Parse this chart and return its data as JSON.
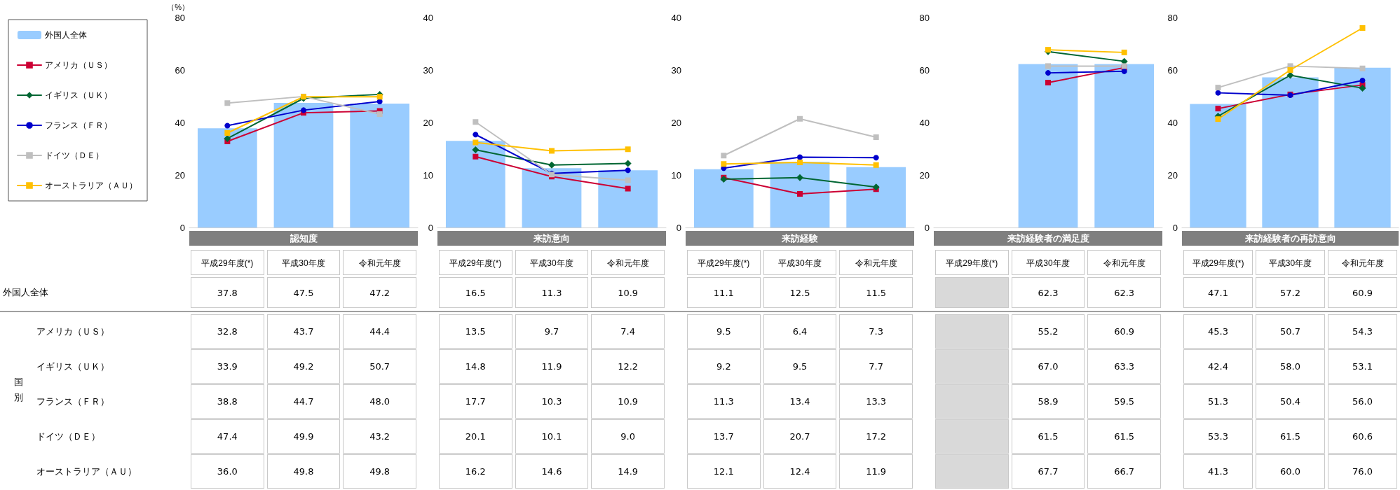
{
  "chart_data": [
    {
      "type": "line",
      "title": "認知度",
      "ylabel": "（%）",
      "categories": [
        "平成29年度(*)",
        "平成30年度",
        "令和元年度"
      ],
      "ylim": [
        0,
        80
      ],
      "yticks": [
        0,
        20,
        40,
        60,
        80
      ],
      "legend": "left",
      "line_style": "solid",
      "annotations": [
        "国別"
      ],
      "series": [
        {
          "type": "bar",
          "name": "外国人全体",
          "color": "#99ccff",
          "values": [
            37.8,
            47.5,
            47.2
          ],
          "value_labels": [
            "37.8",
            "47.5",
            "47.2"
          ]
        },
        {
          "name": "アメリカ（ＵＳ）",
          "color": "#cc0033",
          "marker": "square",
          "values": [
            32.8,
            43.7,
            44.4
          ],
          "value_labels": [
            "32.8",
            "43.7",
            "44.4"
          ]
        },
        {
          "name": "イギリス（ＵＫ）",
          "color": "#006633",
          "marker": "diamond",
          "values": [
            33.9,
            49.2,
            50.7
          ],
          "value_labels": [
            "33.9",
            "49.2",
            "50.7"
          ]
        },
        {
          "name": "フランス（ＦＲ）",
          "color": "#0000cc",
          "marker": "circle",
          "values": [
            38.8,
            44.7,
            48.0
          ],
          "value_labels": [
            "38.8",
            "44.7",
            "48.0"
          ]
        },
        {
          "name": "ドイツ（ＤＥ）",
          "color": "#bfbfbf",
          "marker": "square",
          "values": [
            47.4,
            49.9,
            43.2
          ],
          "value_labels": [
            "47.4",
            "49.9",
            "43.2"
          ]
        },
        {
          "name": "オーストラリア（ＡＵ）",
          "color": "#ffc000",
          "marker": "square",
          "values": [
            36.0,
            49.8,
            49.8
          ],
          "value_labels": [
            "36.0",
            "49.8",
            "49.8"
          ]
        }
      ]
    },
    {
      "type": "line",
      "title": "来訪意向",
      "categories": [
        "平成29年度(*)",
        "平成30年度",
        "令和元年度"
      ],
      "ylim": [
        0,
        40
      ],
      "yticks": [
        0,
        10,
        20,
        30,
        40
      ],
      "line_style": "solid",
      "series": [
        {
          "type": "bar",
          "color": "#99ccff",
          "values": [
            16.5,
            11.3,
            10.9
          ],
          "value_labels": [
            "16.5",
            "11.3",
            "10.9"
          ]
        },
        {
          "color": "#cc0033",
          "marker": "square",
          "values": [
            13.5,
            9.7,
            7.4
          ],
          "value_labels": [
            "13.5",
            "9.7",
            "7.4"
          ]
        },
        {
          "color": "#006633",
          "marker": "diamond",
          "values": [
            14.8,
            11.9,
            12.2
          ],
          "value_labels": [
            "14.8",
            "11.9",
            "12.2"
          ]
        },
        {
          "color": "#0000cc",
          "marker": "circle",
          "values": [
            17.7,
            10.3,
            10.9
          ],
          "value_labels": [
            "17.7",
            "10.3",
            "10.9"
          ]
        },
        {
          "color": "#bfbfbf",
          "marker": "square",
          "values": [
            20.1,
            10.1,
            9.0
          ],
          "value_labels": [
            "20.1",
            "10.1",
            "9.0"
          ]
        },
        {
          "color": "#ffc000",
          "marker": "square",
          "values": [
            16.2,
            14.6,
            14.9
          ],
          "value_labels": [
            "16.2",
            "14.6",
            "14.9"
          ]
        }
      ]
    },
    {
      "type": "line",
      "title": "来訪経験",
      "categories": [
        "平成29年度(*)",
        "平成30年度",
        "令和元年度"
      ],
      "ylim": [
        0,
        40
      ],
      "yticks": [
        0,
        10,
        20,
        30,
        40
      ],
      "line_style": "solid",
      "series": [
        {
          "type": "bar",
          "color": "#99ccff",
          "values": [
            11.1,
            12.5,
            11.5
          ],
          "value_labels": [
            "11.1",
            "12.5",
            "11.5"
          ]
        },
        {
          "color": "#cc0033",
          "marker": "square",
          "values": [
            9.5,
            6.4,
            7.3
          ],
          "value_labels": [
            "9.5",
            "6.4",
            "7.3"
          ]
        },
        {
          "color": "#006633",
          "marker": "diamond",
          "values": [
            9.2,
            9.5,
            7.7
          ],
          "value_labels": [
            "9.2",
            "9.5",
            "7.7"
          ]
        },
        {
          "color": "#0000cc",
          "marker": "circle",
          "values": [
            11.3,
            13.4,
            13.3
          ],
          "value_labels": [
            "11.3",
            "13.4",
            "13.3"
          ]
        },
        {
          "color": "#bfbfbf",
          "marker": "square",
          "values": [
            13.7,
            20.7,
            17.2
          ],
          "value_labels": [
            "13.7",
            "20.7",
            "17.2"
          ]
        },
        {
          "color": "#ffc000",
          "marker": "square",
          "values": [
            12.1,
            12.4,
            11.9
          ],
          "value_labels": [
            "12.1",
            "12.4",
            "11.9"
          ]
        }
      ]
    },
    {
      "type": "line",
      "title": "来訪経験者の満足度",
      "categories": [
        "平成29年度(*)",
        "平成30年度",
        "令和元年度"
      ],
      "ylim": [
        0,
        80
      ],
      "yticks": [
        0,
        20,
        40,
        60,
        80
      ],
      "line_style": "solid",
      "series": [
        {
          "type": "bar",
          "color": "#99ccff",
          "values": [
            null,
            62.3,
            62.3
          ],
          "value_labels": [
            null,
            "62.3",
            "62.3"
          ]
        },
        {
          "color": "#cc0033",
          "marker": "square",
          "values": [
            null,
            55.2,
            60.9
          ],
          "value_labels": [
            null,
            "55.2",
            "60.9"
          ]
        },
        {
          "color": "#006633",
          "marker": "diamond",
          "values": [
            null,
            67.0,
            63.3
          ],
          "value_labels": [
            null,
            "67.0",
            "63.3"
          ]
        },
        {
          "color": "#0000cc",
          "marker": "circle",
          "values": [
            null,
            58.9,
            59.5
          ],
          "value_labels": [
            null,
            "58.9",
            "59.5"
          ]
        },
        {
          "color": "#bfbfbf",
          "marker": "square",
          "values": [
            null,
            61.5,
            61.5
          ],
          "value_labels": [
            null,
            "61.5",
            "61.5"
          ]
        },
        {
          "color": "#ffc000",
          "marker": "square",
          "values": [
            null,
            67.7,
            66.7
          ],
          "value_labels": [
            null,
            "67.7",
            "66.7"
          ]
        }
      ]
    },
    {
      "type": "line",
      "title": "来訪経験者の再訪意向",
      "categories": [
        "平成29年度(*)",
        "平成30年度",
        "令和元年度"
      ],
      "ylim": [
        0,
        80
      ],
      "yticks": [
        0,
        20,
        40,
        60,
        80
      ],
      "line_style": "solid",
      "series": [
        {
          "type": "bar",
          "color": "#99ccff",
          "values": [
            47.1,
            57.2,
            60.9
          ],
          "value_labels": [
            "47.1",
            "57.2",
            "60.9"
          ]
        },
        {
          "color": "#cc0033",
          "marker": "square",
          "values": [
            45.3,
            50.7,
            54.3
          ],
          "value_labels": [
            "45.3",
            "50.7",
            "54.3"
          ]
        },
        {
          "color": "#006633",
          "marker": "diamond",
          "values": [
            42.4,
            58.0,
            53.1
          ],
          "value_labels": [
            "42.4",
            "58.0",
            "53.1"
          ]
        },
        {
          "color": "#0000cc",
          "marker": "circle",
          "values": [
            51.3,
            50.4,
            56.0
          ],
          "value_labels": [
            "51.3",
            "50.4",
            "56.0"
          ]
        },
        {
          "color": "#bfbfbf",
          "marker": "square",
          "values": [
            53.3,
            61.5,
            60.6
          ],
          "value_labels": [
            "53.3",
            "61.5",
            "60.6"
          ]
        },
        {
          "color": "#ffc000",
          "marker": "square",
          "values": [
            41.3,
            60.0,
            76.0
          ],
          "value_labels": [
            "41.3",
            "60.0",
            "76.0"
          ]
        }
      ]
    }
  ]
}
